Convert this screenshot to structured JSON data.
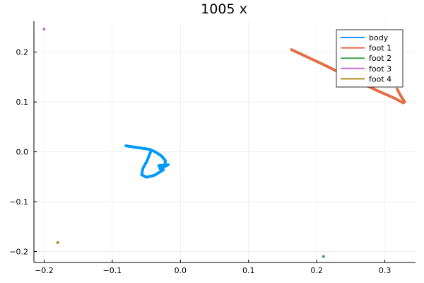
{
  "chart_data": {
    "type": "line",
    "title": "1005 x",
    "xlabel": "",
    "ylabel": "",
    "xlim": [
      -0.215,
      0.345
    ],
    "ylim": [
      -0.222,
      0.262
    ],
    "xticks": [
      -0.2,
      -0.1,
      0.0,
      0.1,
      0.2,
      0.3
    ],
    "xtick_labels": [
      "−0.2",
      "−0.1",
      "0.0",
      "0.1",
      "0.2",
      "0.3"
    ],
    "yticks": [
      -0.2,
      -0.1,
      0.0,
      0.1,
      0.2
    ],
    "ytick_labels": [
      "−0.2",
      "−0.1",
      "0.0",
      "0.1",
      "0.2"
    ],
    "grid": true,
    "legend_position": "top-right",
    "series": [
      {
        "name": "body",
        "color": "#009af9",
        "kind": "line",
        "x": [
          -0.08,
          -0.045,
          -0.037,
          -0.028,
          -0.022,
          -0.023,
          -0.03,
          -0.018,
          -0.032,
          -0.025,
          -0.038,
          -0.05,
          -0.057,
          -0.055,
          -0.049,
          -0.043
        ],
        "y": [
          0.012,
          0.005,
          0.0,
          -0.008,
          -0.018,
          -0.027,
          -0.034,
          -0.026,
          -0.028,
          -0.036,
          -0.047,
          -0.051,
          -0.046,
          -0.033,
          -0.018,
          0.003
        ]
      },
      {
        "name": "foot 1",
        "color": "#e26f46",
        "kind": "line",
        "x": [
          0.163,
          0.21,
          0.25,
          0.29,
          0.315,
          0.327,
          0.329,
          0.323,
          0.318
        ],
        "y": [
          0.205,
          0.175,
          0.148,
          0.122,
          0.107,
          0.098,
          0.1,
          0.113,
          0.126
        ]
      },
      {
        "name": "foot 2",
        "color": "#3da44d",
        "kind": "point",
        "x": [
          0.21
        ],
        "y": [
          -0.21
        ]
      },
      {
        "name": "foot 3",
        "color": "#c271d2",
        "kind": "point",
        "x": [
          -0.2
        ],
        "y": [
          0.246
        ]
      },
      {
        "name": "foot 4",
        "color": "#ac8d18",
        "kind": "point",
        "x": [
          -0.18
        ],
        "y": [
          -0.182
        ]
      }
    ]
  }
}
